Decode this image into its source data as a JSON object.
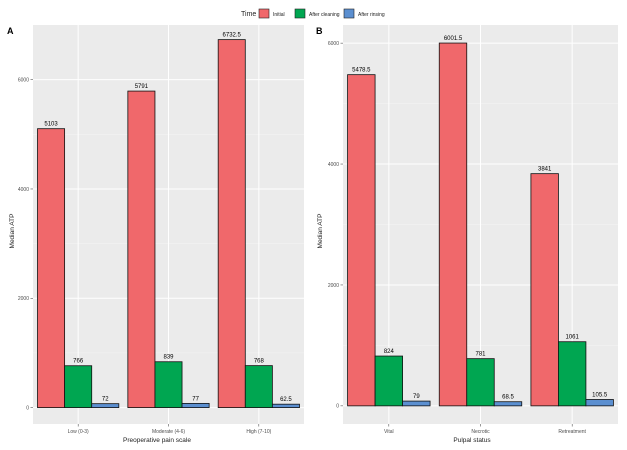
{
  "legend": {
    "title": "Time",
    "entries": [
      {
        "label": "Initial",
        "color": "#F0686B"
      },
      {
        "label": "After cleaning",
        "color": "#00A651"
      },
      {
        "label": "After rinsing",
        "color": "#5B8FD0"
      }
    ]
  },
  "chart_data": [
    {
      "type": "bar",
      "panel": "A",
      "title": "",
      "xlabel": "Preoperative pain scale",
      "ylabel": "Median ATP",
      "ylim": [
        -300,
        7000
      ],
      "yticks": [
        0,
        2000,
        4000,
        6000
      ],
      "ytick_labels": [
        "0",
        "2000",
        "4000",
        "6000"
      ],
      "categories": [
        "Low (0-3)",
        "Moderate (4-6)",
        "High (7-10)"
      ],
      "series": [
        {
          "name": "Initial",
          "values": [
            5103,
            5791,
            6732.5
          ],
          "labels": [
            "5103",
            "5791",
            "6732.5"
          ]
        },
        {
          "name": "After cleaning",
          "values": [
            766,
            839,
            768
          ],
          "labels": [
            "766",
            "839",
            "768"
          ]
        },
        {
          "name": "After rinsing",
          "values": [
            72,
            77,
            62.5
          ],
          "labels": [
            "72",
            "77",
            "62.5"
          ]
        }
      ],
      "grid": true,
      "legend_position": "top"
    },
    {
      "type": "bar",
      "panel": "B",
      "title": "",
      "xlabel": "Pulpal status",
      "ylabel": "Median ATP",
      "ylim": [
        -300,
        6300
      ],
      "yticks": [
        0,
        2000,
        4000,
        6000
      ],
      "ytick_labels": [
        "0",
        "2000",
        "4000",
        "6000"
      ],
      "categories": [
        "Vital",
        "Necrotic",
        "Retreatment"
      ],
      "series": [
        {
          "name": "Initial",
          "values": [
            5478.5,
            6001.5,
            3841
          ],
          "labels": [
            "5478.5",
            "6001.5",
            "3841"
          ]
        },
        {
          "name": "After cleaning",
          "values": [
            824,
            781,
            1061
          ],
          "labels": [
            "824",
            "781",
            "1061"
          ]
        },
        {
          "name": "After rinsing",
          "values": [
            79,
            68.5,
            105.5
          ],
          "labels": [
            "79",
            "68.5",
            "105.5"
          ]
        }
      ],
      "grid": true,
      "legend_position": "top"
    }
  ]
}
